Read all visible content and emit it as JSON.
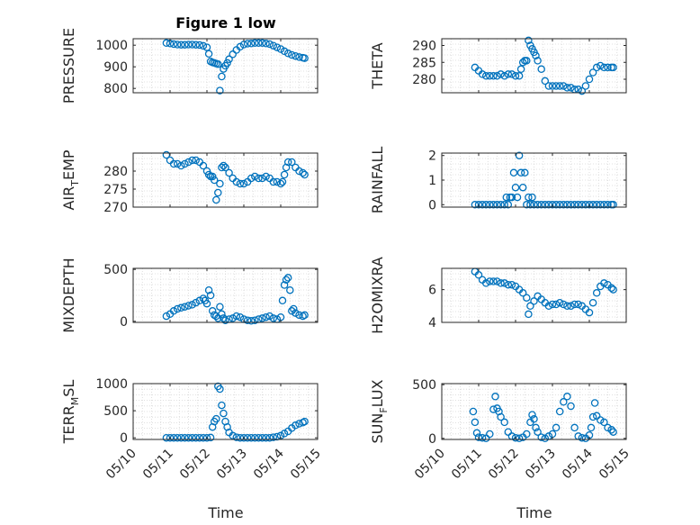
{
  "figure": {
    "title": "Figure 1 low"
  },
  "colors": {
    "marker": "#0072BD",
    "axis": "#262626",
    "grid": "#D6D6D6",
    "background": "#FFFFFF"
  },
  "x_axis": {
    "label": "Time",
    "ticks": [
      0,
      1,
      2,
      3,
      4,
      5
    ],
    "tick_labels": [
      "05/10",
      "05/11",
      "05/12",
      "05/13",
      "05/14",
      "05/15"
    ],
    "unit": "days from 05/10"
  },
  "chart_data": [
    {
      "type": "scatter",
      "ylabel": "PRESSURE",
      "ylabel_parts": [
        [
          "PRESSURE",
          ""
        ]
      ],
      "xlim": [
        0,
        5
      ],
      "ylim": [
        780,
        1030
      ],
      "yticks": [
        800,
        900,
        1000
      ],
      "grid": true,
      "marker": "o",
      "x": [
        0.9,
        1.0,
        1.1,
        1.2,
        1.3,
        1.4,
        1.5,
        1.6,
        1.7,
        1.8,
        1.9,
        2.0,
        2.05,
        2.1,
        2.15,
        2.2,
        2.25,
        2.3,
        2.35,
        2.4,
        2.45,
        2.5,
        2.55,
        2.6,
        2.7,
        2.8,
        2.9,
        3.0,
        3.1,
        3.2,
        3.3,
        3.4,
        3.5,
        3.6,
        3.7,
        3.8,
        3.9,
        4.0,
        4.1,
        4.2,
        4.3,
        4.4,
        4.5,
        4.6,
        4.65
      ],
      "y": [
        1010,
        1008,
        1005,
        1003,
        1002,
        1002,
        1003,
        1003,
        1002,
        1001,
        997,
        990,
        960,
        925,
        920,
        918,
        915,
        912,
        790,
        855,
        890,
        905,
        918,
        935,
        958,
        978,
        993,
        1003,
        1007,
        1008,
        1010,
        1010,
        1010,
        1008,
        1005,
        998,
        990,
        982,
        972,
        962,
        955,
        950,
        945,
        942,
        940
      ]
    },
    {
      "type": "scatter",
      "ylabel": "THETA",
      "ylabel_parts": [
        [
          "THETA",
          ""
        ]
      ],
      "xlim": [
        0,
        5
      ],
      "ylim": [
        276,
        292
      ],
      "yticks": [
        280,
        285,
        290
      ],
      "grid": true,
      "marker": "o",
      "x": [
        0.9,
        1.0,
        1.1,
        1.2,
        1.3,
        1.4,
        1.5,
        1.6,
        1.7,
        1.8,
        1.9,
        2.0,
        2.1,
        2.15,
        2.2,
        2.25,
        2.3,
        2.35,
        2.4,
        2.45,
        2.5,
        2.55,
        2.6,
        2.7,
        2.8,
        2.9,
        3.0,
        3.1,
        3.2,
        3.3,
        3.4,
        3.5,
        3.6,
        3.7,
        3.8,
        3.9,
        4.0,
        4.1,
        4.2,
        4.3,
        4.4,
        4.5,
        4.6,
        4.65
      ],
      "y": [
        283.5,
        282.5,
        281.5,
        281,
        281,
        281,
        281,
        281.5,
        281,
        281.5,
        281.5,
        281,
        281,
        283,
        285,
        285.5,
        285.5,
        291.5,
        290,
        289,
        288,
        287,
        285.5,
        283,
        279.5,
        278,
        278,
        278,
        278,
        278,
        277.5,
        277.5,
        277,
        277,
        276.5,
        278,
        280,
        282,
        283.5,
        284,
        283.5,
        283.5,
        283.5,
        283.5
      ]
    },
    {
      "type": "scatter",
      "ylabel": "AIR_TEMP",
      "ylabel_parts": [
        [
          "AIR",
          ""
        ],
        [
          "T",
          "sub"
        ],
        [
          "EMP",
          ""
        ]
      ],
      "xlim": [
        0,
        5
      ],
      "ylim": [
        270,
        285
      ],
      "yticks": [
        270,
        275,
        280
      ],
      "grid": true,
      "marker": "o",
      "x": [
        0.9,
        1.0,
        1.1,
        1.2,
        1.3,
        1.4,
        1.5,
        1.6,
        1.7,
        1.8,
        1.9,
        2.0,
        2.05,
        2.1,
        2.15,
        2.2,
        2.25,
        2.3,
        2.35,
        2.4,
        2.45,
        2.5,
        2.6,
        2.7,
        2.8,
        2.9,
        3.0,
        3.1,
        3.2,
        3.3,
        3.4,
        3.5,
        3.6,
        3.7,
        3.8,
        3.9,
        4.0,
        4.05,
        4.1,
        4.15,
        4.2,
        4.3,
        4.4,
        4.5,
        4.6,
        4.65
      ],
      "y": [
        284.5,
        283,
        282,
        282,
        281.5,
        282,
        282.5,
        283,
        283,
        282.5,
        281.5,
        280,
        279,
        278.5,
        278.5,
        277.5,
        272,
        274,
        276.5,
        281,
        281.5,
        281,
        279.5,
        278,
        277,
        276.5,
        276.5,
        277,
        278,
        278.5,
        278,
        278,
        278.5,
        278,
        277,
        277,
        276.5,
        277,
        279,
        281,
        282.5,
        282.5,
        281,
        280,
        279.5,
        279
      ]
    },
    {
      "type": "scatter",
      "ylabel": "RAINFALL",
      "ylabel_parts": [
        [
          "RAINFALL",
          ""
        ]
      ],
      "xlim": [
        0,
        5
      ],
      "ylim": [
        -0.1,
        2.1
      ],
      "yticks": [
        0,
        1,
        2
      ],
      "grid": true,
      "marker": "o",
      "x": [
        0.9,
        1.0,
        1.1,
        1.2,
        1.3,
        1.4,
        1.5,
        1.6,
        1.7,
        1.75,
        1.8,
        1.85,
        1.9,
        1.95,
        2.0,
        2.05,
        2.1,
        2.15,
        2.2,
        2.25,
        2.3,
        2.35,
        2.4,
        2.45,
        2.5,
        2.6,
        2.7,
        2.8,
        2.9,
        3.0,
        3.1,
        3.2,
        3.3,
        3.4,
        3.5,
        3.6,
        3.7,
        3.8,
        3.9,
        4.0,
        4.1,
        4.2,
        4.3,
        4.4,
        4.5,
        4.6,
        4.65
      ],
      "y": [
        0,
        0,
        0,
        0,
        0,
        0,
        0,
        0,
        0,
        0.3,
        0,
        0.3,
        0.3,
        1.3,
        0.7,
        0.3,
        2.0,
        1.3,
        0.7,
        1.3,
        0,
        0.3,
        0,
        0.3,
        0,
        0,
        0,
        0,
        0,
        0,
        0,
        0,
        0,
        0,
        0,
        0,
        0,
        0,
        0,
        0,
        0,
        0,
        0,
        0,
        0,
        0,
        0
      ]
    },
    {
      "type": "scatter",
      "ylabel": "MIXDEPTH",
      "ylabel_parts": [
        [
          "MIXDEPTH",
          ""
        ]
      ],
      "xlim": [
        0,
        5
      ],
      "ylim": [
        -10,
        510
      ],
      "yticks": [
        0,
        500
      ],
      "grid": true,
      "marker": "o",
      "x": [
        0.9,
        1.0,
        1.1,
        1.2,
        1.3,
        1.4,
        1.5,
        1.6,
        1.7,
        1.8,
        1.9,
        1.95,
        2.0,
        2.05,
        2.1,
        2.15,
        2.2,
        2.25,
        2.3,
        2.35,
        2.4,
        2.45,
        2.5,
        2.6,
        2.7,
        2.8,
        2.9,
        3.0,
        3.1,
        3.2,
        3.3,
        3.4,
        3.5,
        3.6,
        3.7,
        3.8,
        3.9,
        4.0,
        4.05,
        4.1,
        4.15,
        4.2,
        4.25,
        4.3,
        4.35,
        4.4,
        4.5,
        4.6,
        4.65
      ],
      "y": [
        50,
        70,
        100,
        120,
        130,
        140,
        150,
        160,
        180,
        200,
        220,
        200,
        170,
        300,
        250,
        100,
        60,
        50,
        30,
        140,
        70,
        30,
        10,
        20,
        30,
        50,
        40,
        20,
        10,
        5,
        10,
        20,
        30,
        40,
        50,
        30,
        20,
        40,
        200,
        350,
        400,
        420,
        300,
        100,
        120,
        80,
        60,
        50,
        60
      ]
    },
    {
      "type": "scatter",
      "ylabel": "H2OMIXRA",
      "ylabel_parts": [
        [
          "H2OMIXRA",
          ""
        ]
      ],
      "xlim": [
        0,
        5
      ],
      "ylim": [
        4,
        7.3
      ],
      "yticks": [
        4,
        6
      ],
      "grid": true,
      "marker": "o",
      "x": [
        0.9,
        1.0,
        1.1,
        1.2,
        1.3,
        1.4,
        1.5,
        1.6,
        1.7,
        1.8,
        1.9,
        2.0,
        2.1,
        2.2,
        2.3,
        2.35,
        2.4,
        2.5,
        2.6,
        2.7,
        2.8,
        2.9,
        3.0,
        3.1,
        3.2,
        3.3,
        3.4,
        3.5,
        3.6,
        3.7,
        3.8,
        3.9,
        4.0,
        4.1,
        4.2,
        4.3,
        4.4,
        4.5,
        4.6,
        4.65
      ],
      "y": [
        7.1,
        6.9,
        6.6,
        6.4,
        6.5,
        6.5,
        6.5,
        6.4,
        6.4,
        6.3,
        6.3,
        6.2,
        6.0,
        5.8,
        5.5,
        4.5,
        5.0,
        5.3,
        5.6,
        5.4,
        5.2,
        5.0,
        5.1,
        5.1,
        5.2,
        5.1,
        5.0,
        5.0,
        5.1,
        5.1,
        5.0,
        4.8,
        4.6,
        5.2,
        5.8,
        6.2,
        6.4,
        6.3,
        6.1,
        6.0
      ]
    },
    {
      "type": "scatter",
      "ylabel": "TERR_MSL",
      "ylabel_parts": [
        [
          "TERR",
          ""
        ],
        [
          "M",
          "sub"
        ],
        [
          "SL",
          ""
        ]
      ],
      "xlim": [
        0,
        5
      ],
      "ylim": [
        -30,
        1000
      ],
      "yticks": [
        0,
        500,
        1000
      ],
      "grid": true,
      "marker": "o",
      "x": [
        0.9,
        1.0,
        1.1,
        1.2,
        1.3,
        1.4,
        1.5,
        1.6,
        1.7,
        1.8,
        1.9,
        2.0,
        2.1,
        2.15,
        2.2,
        2.25,
        2.3,
        2.35,
        2.4,
        2.45,
        2.5,
        2.55,
        2.6,
        2.7,
        2.8,
        2.9,
        3.0,
        3.1,
        3.2,
        3.3,
        3.4,
        3.5,
        3.6,
        3.7,
        3.8,
        3.9,
        4.0,
        4.1,
        4.2,
        4.3,
        4.4,
        4.5,
        4.6,
        4.65
      ],
      "y": [
        0,
        0,
        0,
        0,
        0,
        0,
        0,
        0,
        0,
        0,
        0,
        0,
        5,
        200,
        300,
        350,
        950,
        900,
        600,
        450,
        300,
        200,
        100,
        40,
        10,
        0,
        0,
        0,
        0,
        0,
        0,
        0,
        0,
        0,
        10,
        20,
        40,
        80,
        120,
        180,
        230,
        260,
        280,
        300
      ]
    },
    {
      "type": "scatter",
      "ylabel": "SUN_FLUX",
      "ylabel_parts": [
        [
          "SUN",
          ""
        ],
        [
          "F",
          "sub"
        ],
        [
          "LUX",
          ""
        ]
      ],
      "xlim": [
        0,
        5
      ],
      "ylim": [
        -10,
        510
      ],
      "yticks": [
        0,
        500
      ],
      "grid": true,
      "marker": "o",
      "x": [
        0.85,
        0.9,
        0.95,
        1.0,
        1.1,
        1.2,
        1.3,
        1.4,
        1.45,
        1.5,
        1.55,
        1.6,
        1.7,
        1.8,
        1.9,
        2.0,
        2.1,
        2.2,
        2.3,
        2.4,
        2.45,
        2.5,
        2.55,
        2.6,
        2.7,
        2.8,
        2.9,
        3.0,
        3.1,
        3.2,
        3.3,
        3.4,
        3.5,
        3.6,
        3.7,
        3.8,
        3.9,
        4.0,
        4.05,
        4.1,
        4.15,
        4.2,
        4.3,
        4.4,
        4.5,
        4.6,
        4.65
      ],
      "y": [
        250,
        150,
        50,
        10,
        5,
        0,
        40,
        270,
        390,
        280,
        250,
        200,
        150,
        60,
        20,
        5,
        0,
        10,
        40,
        150,
        220,
        180,
        100,
        60,
        10,
        0,
        20,
        40,
        100,
        250,
        340,
        390,
        300,
        100,
        20,
        5,
        0,
        30,
        100,
        200,
        330,
        210,
        170,
        150,
        100,
        80,
        60
      ]
    }
  ]
}
